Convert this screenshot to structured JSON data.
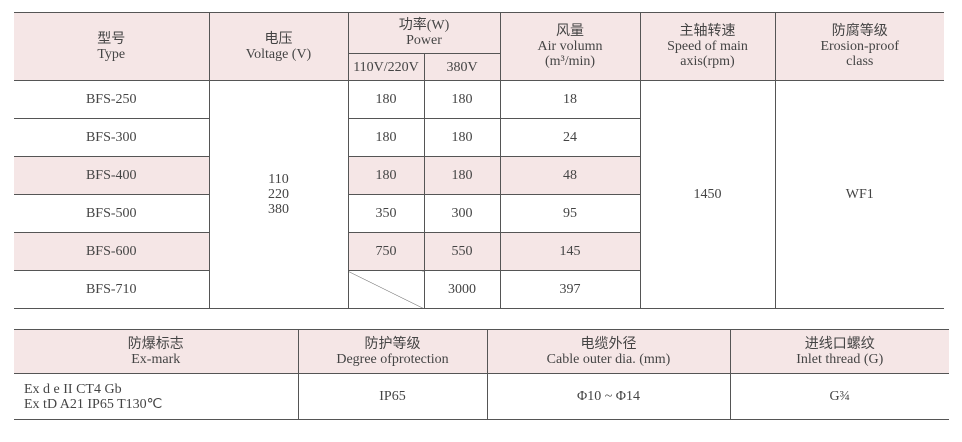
{
  "table1": {
    "headers": {
      "type": [
        "型号",
        "Type"
      ],
      "voltage": [
        "电压",
        "Voltage (V)"
      ],
      "power": [
        "功率(W)",
        "Power"
      ],
      "power_sub": [
        "110V/220V",
        "380V"
      ],
      "air": [
        "风量",
        "Air volumn",
        "(m³/min)"
      ],
      "speed": [
        "主轴转速",
        "Speed of main",
        "axis(rpm)"
      ],
      "erosion": [
        "防腐等级",
        "Erosion-proof",
        "class"
      ]
    },
    "voltage_values": [
      "110",
      "220",
      "380"
    ],
    "speed_value": "1450",
    "erosion_value": "WF1",
    "rows": [
      {
        "type": "BFS-250",
        "p1": "180",
        "p2": "180",
        "air": "18"
      },
      {
        "type": "BFS-300",
        "p1": "180",
        "p2": "180",
        "air": "24"
      },
      {
        "type": "BFS-400",
        "p1": "180",
        "p2": "180",
        "air": "48"
      },
      {
        "type": "BFS-500",
        "p1": "350",
        "p2": "300",
        "air": "95"
      },
      {
        "type": "BFS-600",
        "p1": "750",
        "p2": "550",
        "air": "145"
      },
      {
        "type": "BFS-710",
        "p1": "",
        "p2": "3000",
        "air": "397"
      }
    ]
  },
  "table2": {
    "headers": [
      [
        "防爆标志",
        "Ex-mark"
      ],
      [
        "防护等级",
        "Degree ofprotection"
      ],
      [
        "电缆外径",
        "Cable outer dia. (mm)"
      ],
      [
        "进线口螺纹",
        "Inlet thread (G)"
      ]
    ],
    "exmark": [
      "Ex d e II CT4 Gb",
      "Ex tD A21 IP65 T130℃"
    ],
    "protection": "IP65",
    "cable": "Φ10 ~ Φ14",
    "thread": "G¾"
  },
  "colors": {
    "header_bg": "#f5e6e6",
    "border": "#555555"
  }
}
